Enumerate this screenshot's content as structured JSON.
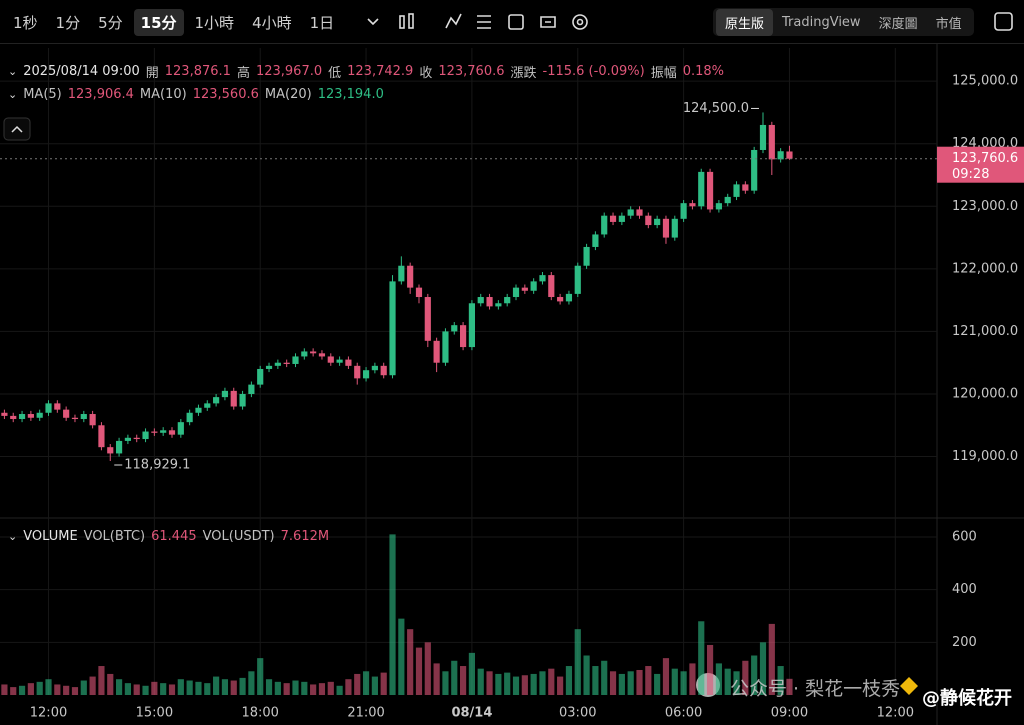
{
  "toolbar": {
    "intervals": [
      "1秒",
      "1分",
      "5分",
      "15分",
      "1小時",
      "4小時",
      "1日"
    ],
    "views": [
      "原生版",
      "TradingView",
      "深度圖",
      "市值"
    ]
  },
  "info": {
    "datetime": "2025/08/14 09:00",
    "items": [
      [
        "開",
        "123,876.1"
      ],
      [
        "高",
        "123,967.0"
      ],
      [
        "低",
        "123,742.9"
      ],
      [
        "收",
        "123,760.6"
      ],
      [
        "漲跌",
        "-115.6 (-0.09%)"
      ],
      [
        "振幅",
        "0.18%"
      ]
    ],
    "ma": [
      [
        "MA(5)",
        "123,906.4"
      ],
      [
        "MA(10)",
        "123,560.6"
      ],
      [
        "MA(20)",
        "123,194.0"
      ]
    ],
    "volume": [
      "VOLUME",
      [
        "VOL(BTC)",
        "61.445"
      ],
      [
        "VOL(USDT)",
        "7.612M"
      ]
    ]
  },
  "chart_data": {
    "type": "candlestick",
    "categories": [
      null,
      null,
      null,
      null,
      null,
      "12:00",
      null,
      null,
      null,
      null,
      null,
      null,
      null,
      null,
      null,
      null,
      null,
      "15:00",
      null,
      null,
      null,
      null,
      null,
      null,
      null,
      null,
      null,
      null,
      null,
      "18:00",
      null,
      null,
      null,
      null,
      null,
      null,
      null,
      null,
      null,
      null,
      null,
      "21:00",
      null,
      null,
      null,
      null,
      null,
      null,
      null,
      null,
      null,
      null,
      null,
      "08/14",
      null,
      null,
      null,
      null,
      null,
      null,
      null,
      null,
      null,
      null,
      null,
      "03:00",
      null,
      null,
      null,
      null,
      null,
      null,
      null,
      null,
      null,
      null,
      null,
      "06:00",
      null,
      null,
      null,
      null,
      null,
      null,
      null,
      null,
      null,
      null,
      null,
      "09:00",
      null,
      null,
      null,
      null,
      null,
      null,
      null,
      null,
      null,
      null,
      null,
      "12:00",
      null,
      null,
      null,
      null
    ],
    "open": [
      119700,
      119650,
      119600,
      119680,
      119620,
      119700,
      119850,
      119750,
      119620,
      119600,
      119680,
      119500,
      119150,
      119050,
      119250,
      119300,
      119280,
      119400,
      119380,
      119420,
      119350,
      119550,
      119700,
      119780,
      119850,
      119950,
      120050,
      119800,
      120000,
      120150,
      120400,
      120450,
      120500,
      120480,
      120600,
      120680,
      120650,
      120600,
      120500,
      120550,
      120450,
      120250,
      120380,
      120450,
      120300,
      121800,
      122050,
      121700,
      121550,
      120850,
      120500,
      121000,
      121100,
      120750,
      121450,
      121550,
      121400,
      121450,
      121550,
      121700,
      121650,
      121800,
      121900,
      121550,
      121480,
      121600,
      122050,
      122350,
      122550,
      122850,
      122750,
      122850,
      122950,
      122850,
      122700,
      122800,
      122500,
      122800,
      123050,
      123000,
      123550,
      122950,
      123050,
      123150,
      123350,
      123250,
      123900,
      124300,
      123750,
      123876.1,
      null,
      null,
      null,
      null,
      null,
      null,
      null,
      null,
      null,
      null,
      null,
      null,
      null,
      null,
      null,
      null
    ],
    "high": [
      119750,
      119700,
      119730,
      119730,
      119750,
      119900,
      119900,
      119800,
      119670,
      119730,
      119730,
      119550,
      119200,
      119300,
      119350,
      119350,
      119450,
      119450,
      119470,
      119470,
      119600,
      119750,
      119830,
      119900,
      120000,
      120100,
      120100,
      120050,
      120200,
      120450,
      120500,
      120550,
      120550,
      120650,
      120730,
      120730,
      120700,
      120650,
      120600,
      120600,
      120500,
      120430,
      120500,
      120500,
      121900,
      122200,
      122100,
      121750,
      121600,
      120900,
      121050,
      121150,
      121150,
      121500,
      121600,
      121600,
      121500,
      121600,
      121750,
      121750,
      121850,
      121950,
      121950,
      121600,
      121650,
      122100,
      122400,
      122600,
      122900,
      122900,
      122900,
      123000,
      123000,
      122900,
      122850,
      122850,
      122850,
      123100,
      123100,
      123600,
      123600,
      123100,
      123200,
      123400,
      123400,
      123950,
      124500,
      124350,
      123930,
      123967,
      null,
      null,
      null,
      null,
      null,
      null,
      null,
      null,
      null,
      null,
      null,
      null,
      null,
      null,
      null,
      null
    ],
    "low": [
      119600,
      119550,
      119550,
      119570,
      119570,
      119650,
      119700,
      119570,
      119550,
      119550,
      119450,
      119100,
      118929.1,
      119000,
      119200,
      119230,
      119230,
      119330,
      119330,
      119300,
      119300,
      119500,
      119650,
      119730,
      119800,
      119900,
      119750,
      119750,
      119950,
      120100,
      120350,
      120400,
      120430,
      120430,
      120550,
      120600,
      120550,
      120450,
      120450,
      120400,
      120150,
      120200,
      120330,
      120250,
      120250,
      121750,
      121600,
      121450,
      120750,
      120350,
      120450,
      120950,
      120700,
      120700,
      121400,
      121350,
      121350,
      121400,
      121500,
      121600,
      121600,
      121750,
      121500,
      121430,
      121430,
      121550,
      122000,
      122300,
      122500,
      122700,
      122700,
      122800,
      122800,
      122650,
      122650,
      122400,
      122450,
      122750,
      122950,
      122950,
      122900,
      122900,
      123000,
      123100,
      123200,
      123200,
      123850,
      123500,
      123700,
      123742.9,
      null,
      null,
      null,
      null,
      null,
      null,
      null,
      null,
      null,
      null,
      null,
      null,
      null,
      null,
      null,
      null
    ],
    "close": [
      119650,
      119600,
      119680,
      119620,
      119700,
      119850,
      119750,
      119620,
      119600,
      119680,
      119500,
      119150,
      119050,
      119250,
      119300,
      119280,
      119400,
      119380,
      119420,
      119350,
      119550,
      119700,
      119780,
      119850,
      119950,
      120050,
      119800,
      120000,
      120150,
      120400,
      120450,
      120500,
      120480,
      120600,
      120680,
      120650,
      120600,
      120500,
      120550,
      120450,
      120250,
      120380,
      120450,
      120300,
      121800,
      122050,
      121700,
      121550,
      120850,
      120500,
      121000,
      121100,
      120750,
      121450,
      121550,
      121400,
      121450,
      121550,
      121700,
      121650,
      121800,
      121900,
      121550,
      121480,
      121600,
      122050,
      122350,
      122550,
      122850,
      122750,
      122850,
      122950,
      122850,
      122700,
      122800,
      122500,
      122800,
      123050,
      123000,
      123550,
      122950,
      123050,
      123150,
      123350,
      123250,
      123900,
      124300,
      123750,
      123880,
      123760.6,
      null,
      null,
      null,
      null,
      null,
      null,
      null,
      null,
      null,
      null,
      null,
      null,
      null,
      null,
      null,
      null
    ],
    "volume": [
      40,
      30,
      35,
      45,
      50,
      60,
      40,
      35,
      30,
      55,
      70,
      110,
      80,
      60,
      45,
      40,
      35,
      50,
      45,
      40,
      60,
      55,
      50,
      45,
      70,
      60,
      55,
      65,
      90,
      140,
      60,
      50,
      45,
      55,
      50,
      40,
      45,
      50,
      35,
      60,
      80,
      90,
      70,
      85,
      610,
      290,
      250,
      180,
      200,
      120,
      90,
      130,
      110,
      160,
      100,
      90,
      80,
      85,
      70,
      75,
      80,
      90,
      100,
      70,
      110,
      250,
      150,
      110,
      130,
      90,
      80,
      90,
      95,
      110,
      80,
      140,
      100,
      90,
      120,
      280,
      190,
      120,
      100,
      90,
      130,
      150,
      200,
      270,
      110,
      61.445,
      null,
      null,
      null,
      null,
      null,
      null,
      null,
      null,
      null,
      null,
      null,
      null,
      null,
      null,
      null,
      null
    ],
    "up_color": "#2ebd85",
    "down_color": "#e0577a",
    "ylim": [
      118050,
      125530
    ],
    "yticks": [
      {
        "value": 119000,
        "label": "119,000.0"
      },
      {
        "value": 120000,
        "label": "120,000.0"
      },
      {
        "value": 121000,
        "label": "121,000.0"
      },
      {
        "value": 122000,
        "label": "122,000.0"
      },
      {
        "value": 123000,
        "label": "123,000.0"
      },
      {
        "value": 124000,
        "label": "124,000.0"
      },
      {
        "value": 125000,
        "label": "125,000.0"
      }
    ],
    "volume_ylim": [
      0,
      657
    ],
    "volume_yticks": [
      200,
      400,
      600
    ],
    "grid": true,
    "last_price": {
      "value": 123760.6,
      "label": "123,760.6"
    },
    "countdown": "09:28",
    "high_label": "124,500.0",
    "low_label": "118,929.1"
  },
  "watermark": [
    "公众号 · 梨花一枝秀",
    "@静候花开"
  ]
}
